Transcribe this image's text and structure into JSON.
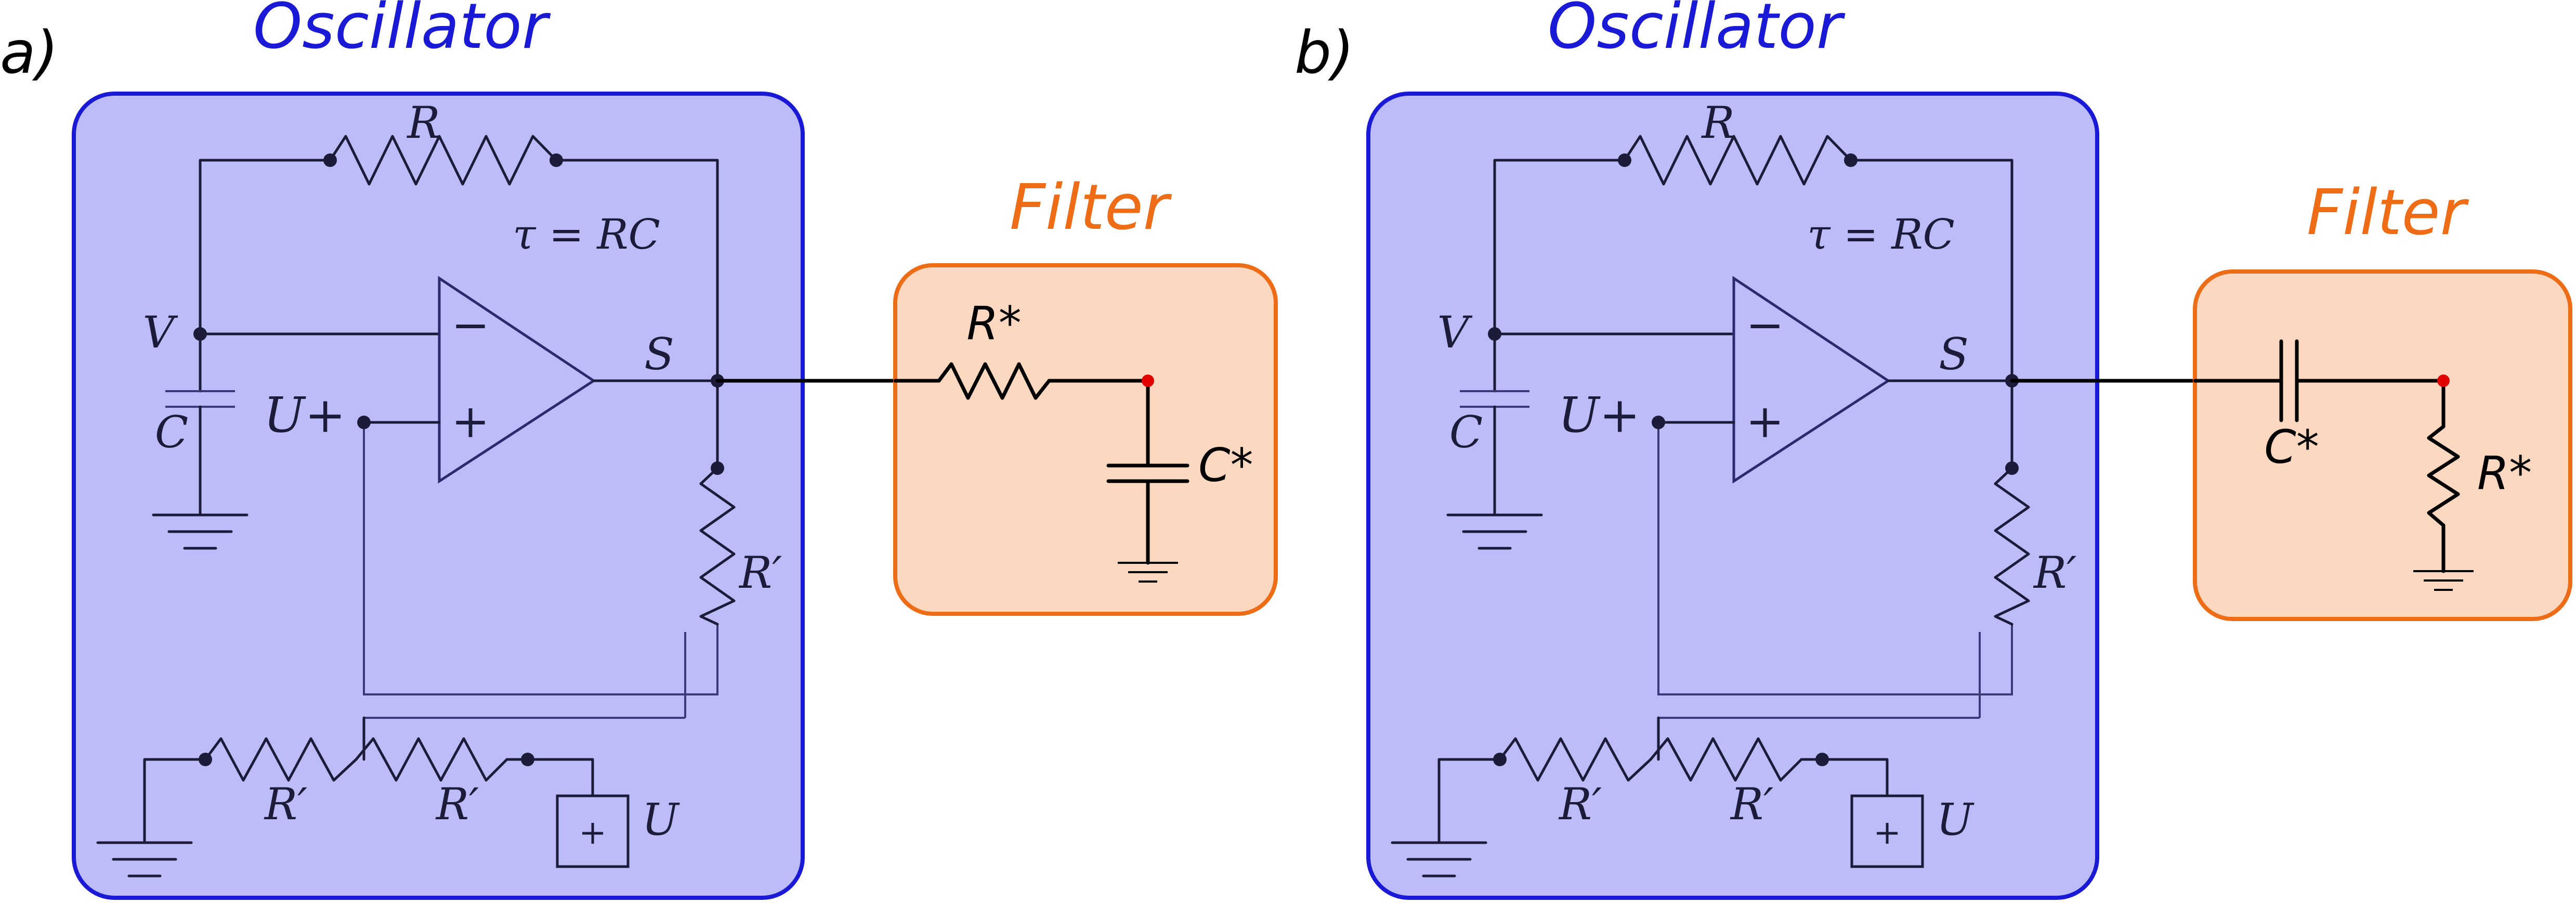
{
  "panels": [
    {
      "id": "a",
      "panel_label": "a)",
      "oscillator": {
        "title": "Oscillator",
        "resistor_label": "R",
        "tau_label": "τ = RC",
        "node_v_label": "V",
        "capacitor_label": "C",
        "output_label": "S",
        "noninv_label": "U+",
        "opamp_minus": "−",
        "opamp_plus": "+",
        "feedback_resistor_label": "R′",
        "divider_left_label": "R′",
        "divider_right_label": "R′",
        "source_symbol": "+",
        "source_label": "U"
      },
      "filter": {
        "title": "Filter",
        "type": "RC low-pass",
        "series_label": "R*",
        "shunt_label": "C*"
      }
    },
    {
      "id": "b",
      "panel_label": "b)",
      "oscillator": {
        "title": "Oscillator",
        "resistor_label": "R",
        "tau_label": "τ = RC",
        "node_v_label": "V",
        "capacitor_label": "C",
        "output_label": "S",
        "noninv_label": "U+",
        "opamp_minus": "−",
        "opamp_plus": "+",
        "feedback_resistor_label": "R′",
        "divider_left_label": "R′",
        "divider_right_label": "R′",
        "source_symbol": "+",
        "source_label": "U"
      },
      "filter": {
        "title": "Filter",
        "type": "CR high-pass",
        "series_label": "C*",
        "shunt_label": "R*"
      }
    }
  ],
  "colors": {
    "oscillator_fill": "#bcbcf8",
    "oscillator_stroke": "#1a1ad6",
    "oscillator_title": "#1a1ad6",
    "filter_fill": "#fdd8c0",
    "filter_stroke": "#ef6c16",
    "filter_title": "#ef6c16",
    "node_highlight": "#e00000"
  }
}
